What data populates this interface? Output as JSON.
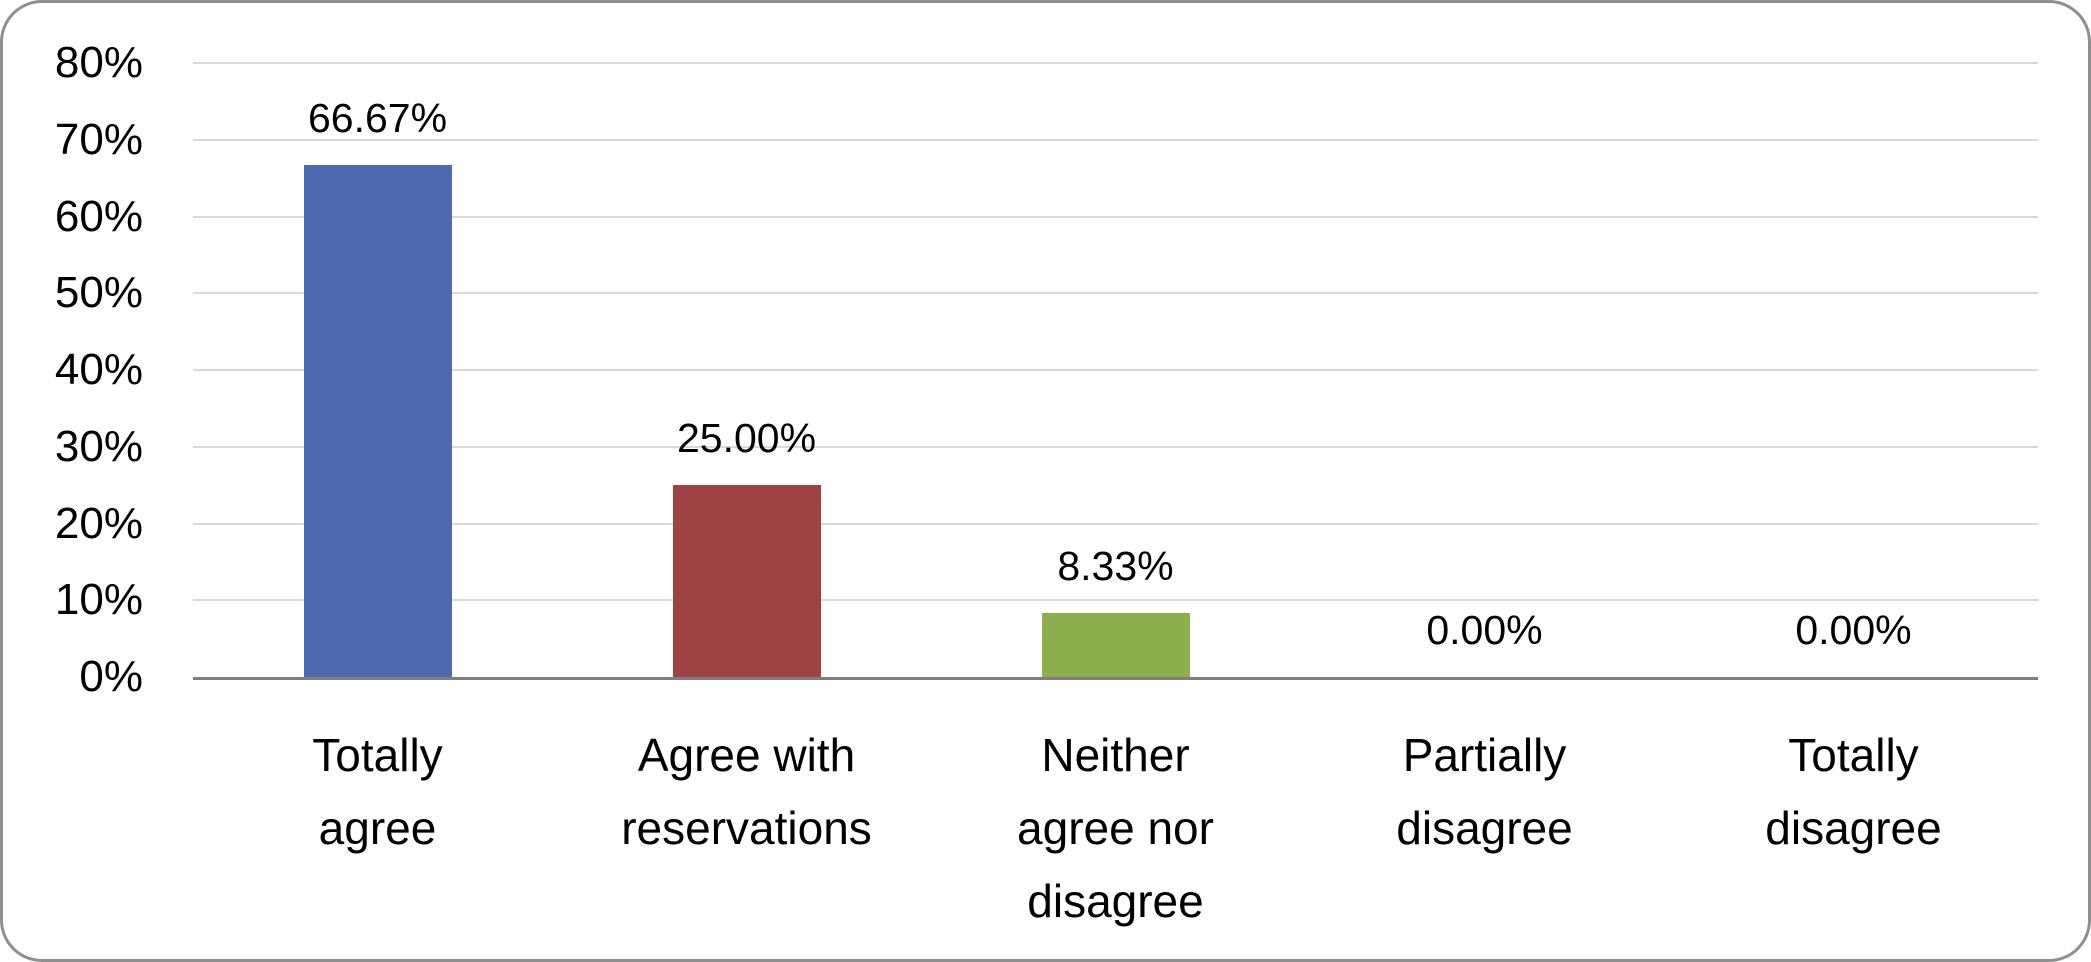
{
  "chart_data": {
    "type": "bar",
    "title": "",
    "xlabel": "",
    "ylabel": "",
    "categories": [
      "Totally agree",
      "Agree with reservations",
      "Neither agree nor disagree",
      "Partially disagree",
      "Totally disagree"
    ],
    "category_label_lines": [
      "Totally\nagree",
      "Agree with\nreservations",
      "Neither\nagree nor\ndisagree",
      "Partially\ndisagree",
      "Totally\ndisagree"
    ],
    "values": [
      66.67,
      25.0,
      8.33,
      0.0,
      0.0
    ],
    "value_labels": [
      "66.67%",
      "25.00%",
      "8.33%",
      "0.00%",
      "0.00%"
    ],
    "bar_colors": [
      "#4d6ab0",
      "#9e4244",
      "#8dae4d",
      null,
      null
    ],
    "ylim": [
      0,
      80
    ],
    "ytick_values": [
      0,
      10,
      20,
      30,
      40,
      50,
      60,
      70,
      80
    ],
    "ytick_labels": [
      "0%",
      "10%",
      "20%",
      "30%",
      "40%",
      "50%",
      "60%",
      "70%",
      "80%"
    ],
    "grid": true,
    "legend": false,
    "colors": {
      "gridline": "#d9d9d9",
      "axis_line": "#7f7f7f",
      "frame_border": "#8f8f8f",
      "text": "#000000",
      "background": "#ffffff"
    }
  }
}
